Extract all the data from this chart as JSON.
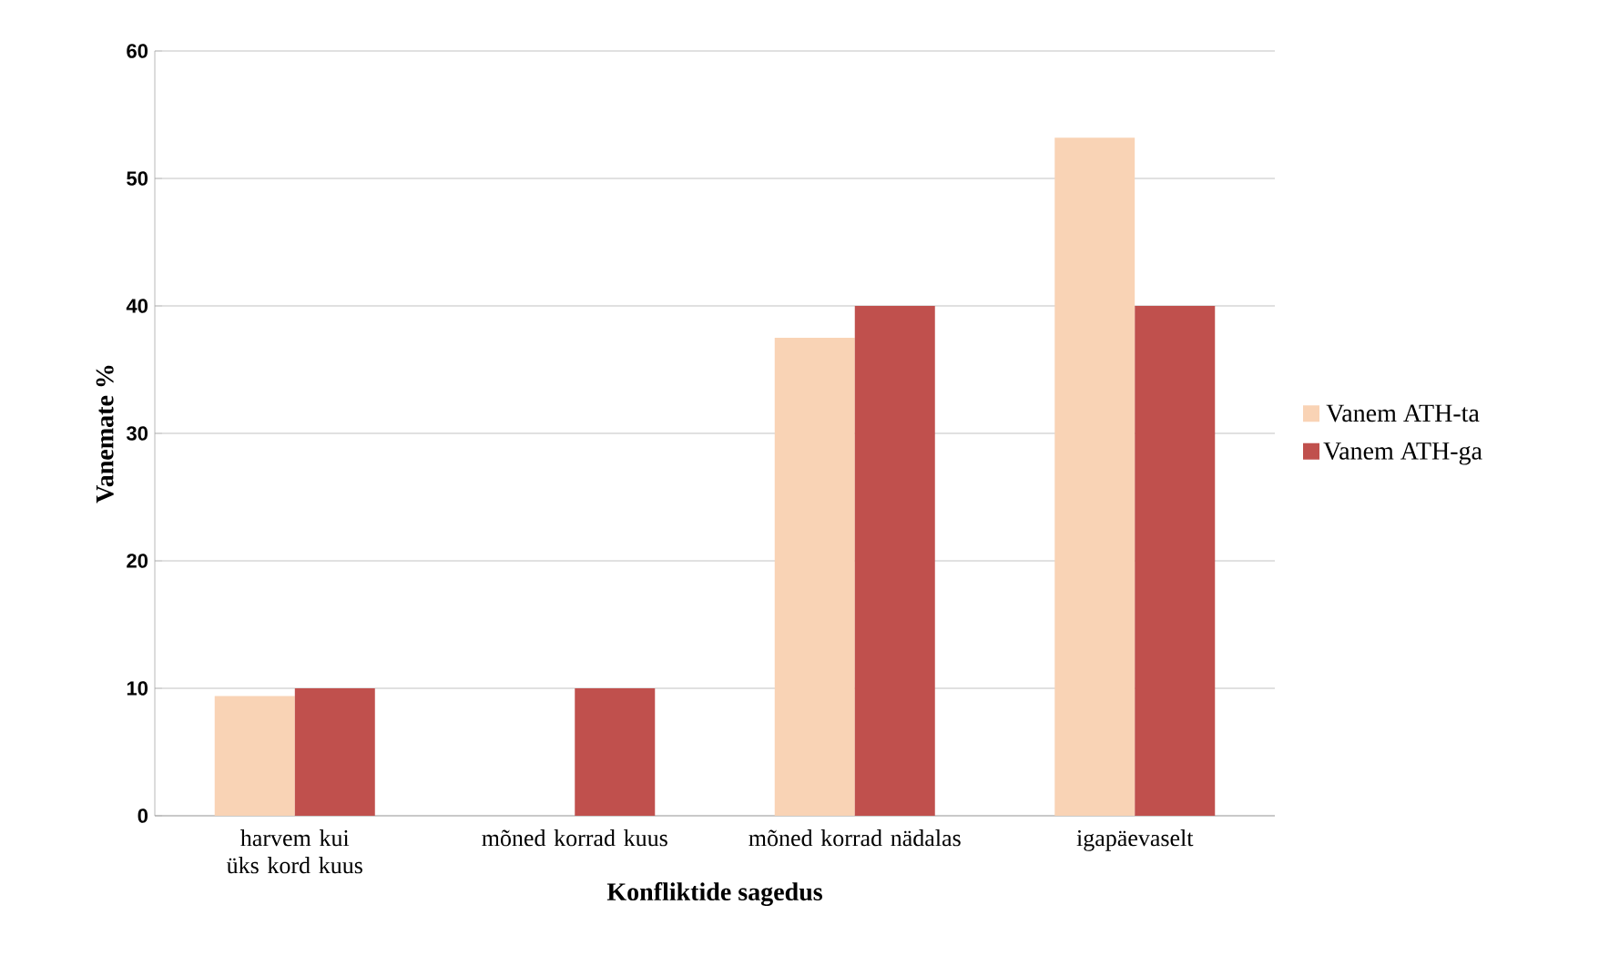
{
  "chart_data": {
    "type": "bar",
    "xlabel": "Konfliktide sagedus",
    "ylabel": "Vanemate %",
    "categories": [
      "harvem kui üks kord kuus",
      "mõned korrad kuus",
      "mõned korrad nädalas",
      "igapäevaselt"
    ],
    "series": [
      {
        "name": "Vanem ATH-ta",
        "color": "#f9d3b5",
        "values": [
          9.4,
          0,
          37.5,
          53.2
        ]
      },
      {
        "name": "Vanem ATH-ga",
        "color": "#c0504d",
        "values": [
          10,
          10,
          40,
          40
        ]
      }
    ],
    "ylim": [
      0,
      60
    ],
    "yticks": [
      0,
      10,
      20,
      30,
      40,
      50,
      60
    ],
    "grid": "y",
    "legend": "right"
  }
}
